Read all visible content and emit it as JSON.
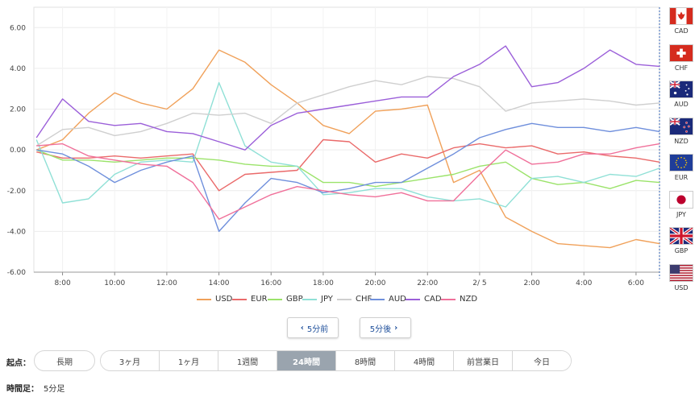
{
  "chart_data": {
    "type": "line",
    "title": "",
    "xlabel": "",
    "ylabel": "",
    "ylim": [
      -6,
      7
    ],
    "y_ticks": [
      "6.00",
      "4.00",
      "2.00",
      "0.00",
      "-2.00",
      "-4.00",
      "-6.00"
    ],
    "x_tick_labels": [
      "8:00",
      "10:00",
      "12:00",
      "14:00",
      "16:00",
      "18:00",
      "20:00",
      "22:00",
      "2/ 5",
      "2:00",
      "4:00",
      "6:00"
    ],
    "x_tick_hours": [
      8,
      10,
      12,
      14,
      16,
      18,
      20,
      22,
      24,
      26,
      28,
      30
    ],
    "x_range_hours": [
      6.9,
      30.9
    ],
    "grid": true,
    "legend_position": "bottom",
    "x": [
      7,
      8,
      9,
      10,
      11,
      12,
      13,
      14,
      15,
      16,
      17,
      18,
      19,
      20,
      21,
      22,
      23,
      24,
      25,
      26,
      27,
      28,
      29,
      30,
      30.9
    ],
    "series": [
      {
        "name": "USD",
        "color": "#f0a15a",
        "values": [
          0.0,
          0.5,
          1.8,
          2.8,
          2.3,
          2.0,
          3.0,
          4.9,
          4.3,
          3.2,
          2.3,
          1.2,
          0.8,
          1.9,
          2.0,
          2.2,
          -1.6,
          -1.0,
          -3.3,
          -4.0,
          -4.6,
          -4.7,
          -4.8,
          -4.4,
          -4.6
        ]
      },
      {
        "name": "EUR",
        "color": "#ea6a6a",
        "values": [
          -0.1,
          -0.4,
          -0.4,
          -0.3,
          -0.4,
          -0.3,
          -0.2,
          -2.0,
          -1.2,
          -1.1,
          -1.0,
          0.5,
          0.4,
          -0.6,
          -0.2,
          -0.4,
          0.1,
          0.3,
          0.1,
          0.2,
          -0.2,
          -0.1,
          -0.3,
          -0.4,
          -0.6
        ]
      },
      {
        "name": "GBP",
        "color": "#9be36a",
        "values": [
          0.0,
          -0.5,
          -0.5,
          -0.6,
          -0.5,
          -0.4,
          -0.4,
          -0.5,
          -0.7,
          -0.8,
          -0.8,
          -1.6,
          -1.6,
          -1.8,
          -1.6,
          -1.4,
          -1.2,
          -0.8,
          -0.6,
          -1.4,
          -1.7,
          -1.6,
          -1.9,
          -1.5,
          -1.6
        ]
      },
      {
        "name": "JPY",
        "color": "#8fe0d6",
        "values": [
          0.5,
          -2.6,
          -2.4,
          -1.2,
          -0.6,
          -0.5,
          -0.6,
          3.3,
          0.2,
          -0.6,
          -0.8,
          -2.2,
          -2.1,
          -1.9,
          -1.9,
          -2.3,
          -2.5,
          -2.4,
          -2.8,
          -1.4,
          -1.3,
          -1.6,
          -1.2,
          -1.3,
          -0.9
        ]
      },
      {
        "name": "CHF",
        "color": "#cfcfcf",
        "values": [
          0.2,
          1.0,
          1.1,
          0.7,
          0.9,
          1.3,
          1.8,
          1.7,
          1.8,
          1.3,
          2.3,
          2.7,
          3.1,
          3.4,
          3.2,
          3.6,
          3.5,
          3.1,
          1.9,
          2.3,
          2.4,
          2.5,
          2.4,
          2.2,
          2.3
        ]
      },
      {
        "name": "AUD",
        "color": "#6f8fdc",
        "values": [
          0.0,
          -0.2,
          -0.8,
          -1.6,
          -1.0,
          -0.6,
          -0.3,
          -4.0,
          -2.6,
          -1.4,
          -1.6,
          -2.1,
          -1.9,
          -1.6,
          -1.6,
          -0.9,
          -0.2,
          0.6,
          1.0,
          1.3,
          1.1,
          1.1,
          0.9,
          1.1,
          0.9
        ]
      },
      {
        "name": "CAD",
        "color": "#9b5fd9",
        "values": [
          0.6,
          2.5,
          1.4,
          1.2,
          1.3,
          0.9,
          0.8,
          0.4,
          0.0,
          1.2,
          1.8,
          2.0,
          2.2,
          2.4,
          2.6,
          2.6,
          3.6,
          4.2,
          5.1,
          3.1,
          3.3,
          4.0,
          4.9,
          4.2,
          4.1
        ]
      },
      {
        "name": "NZD",
        "color": "#f0709a",
        "values": [
          0.2,
          0.3,
          -0.3,
          -0.5,
          -0.7,
          -0.8,
          -1.6,
          -3.4,
          -2.8,
          -2.2,
          -1.8,
          -2.0,
          -2.2,
          -2.3,
          -2.1,
          -2.5,
          -2.5,
          -1.2,
          0.0,
          -0.7,
          -0.6,
          -0.2,
          -0.2,
          0.1,
          0.3
        ]
      }
    ]
  },
  "flags": [
    {
      "code": "CAD",
      "icon": "canada-flag-icon"
    },
    {
      "code": "CHF",
      "icon": "switzerland-flag-icon"
    },
    {
      "code": "AUD",
      "icon": "australia-flag-icon"
    },
    {
      "code": "NZD",
      "icon": "new-zealand-flag-icon"
    },
    {
      "code": "EUR",
      "icon": "eu-flag-icon"
    },
    {
      "code": "JPY",
      "icon": "japan-flag-icon"
    },
    {
      "code": "GBP",
      "icon": "uk-flag-icon"
    },
    {
      "code": "USD",
      "icon": "usa-flag-icon"
    }
  ],
  "nav": {
    "prev_label": "5分前",
    "next_label": "5分後"
  },
  "controls": {
    "start_label": "起点：",
    "long_label": "長期",
    "ranges": [
      "3ヶ月",
      "1ヶ月",
      "1週間",
      "24時間",
      "8時間",
      "4時間",
      "前営業日",
      "今日"
    ],
    "active_range": "24時間",
    "timeframe_label": "時間足：",
    "timeframe_value": "5分足"
  },
  "colors": {
    "accent": "#1d4e9a",
    "active_bg": "#9aa4ae",
    "plot_border": "#2f5fb0"
  }
}
